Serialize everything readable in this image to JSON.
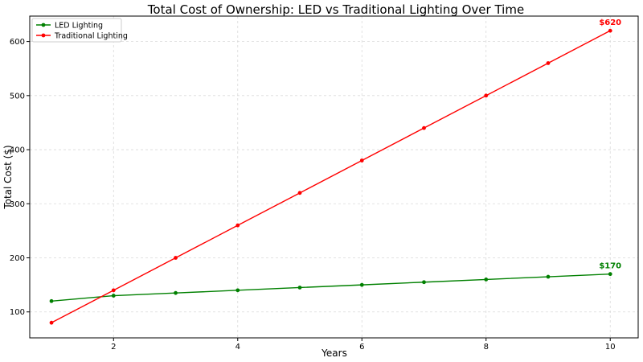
{
  "chart_data": {
    "type": "line",
    "title": "Total Cost of Ownership: LED vs Traditional Lighting Over Time",
    "xlabel": "Years",
    "ylabel": "Total Cost ($)",
    "x": [
      1,
      2,
      3,
      4,
      5,
      6,
      7,
      8,
      9,
      10
    ],
    "xlim": [
      0.65,
      10.45
    ],
    "ylim": [
      52,
      647
    ],
    "xticks": [
      2,
      4,
      6,
      8,
      10
    ],
    "yticks": [
      100,
      200,
      300,
      400,
      500,
      600
    ],
    "grid": true,
    "legend_position": "top-left",
    "series": [
      {
        "name": "LED Lighting",
        "color": "#008000",
        "values": [
          120,
          130,
          135,
          140,
          145,
          150,
          155,
          160,
          165,
          170
        ],
        "end_label": "$170"
      },
      {
        "name": "Traditional Lighting",
        "color": "#ff0000",
        "values": [
          80,
          140,
          200,
          260,
          320,
          380,
          440,
          500,
          560,
          620
        ],
        "end_label": "$620"
      }
    ]
  }
}
